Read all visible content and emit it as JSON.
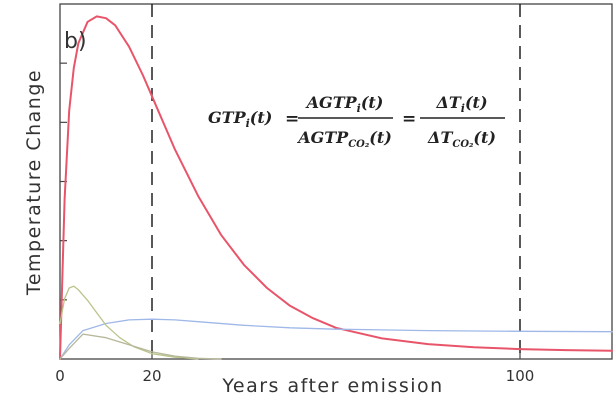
{
  "chart_data": {
    "type": "line",
    "panel_label": "b)",
    "xlabel": "Years after emission",
    "ylabel": "Temperature Change",
    "xlim": [
      0,
      120
    ],
    "ylim": [
      0,
      1
    ],
    "x_ticks": [
      "0",
      "20",
      "100"
    ],
    "x_tick_values": [
      0,
      20,
      100
    ],
    "vlines": [
      20,
      100
    ],
    "equation": {
      "lhs": "GTP",
      "lhs_sub": "i",
      "arg": "(t)",
      "eq": "=",
      "frac1_num": "AGTP",
      "frac1_num_sub": "i",
      "frac1_den": "AGTP",
      "frac1_den_sub": "CO₂",
      "frac2_num": "ΔT",
      "frac2_num_sub": "i",
      "frac2_den": "ΔT",
      "frac2_den_sub": "CO₂"
    },
    "series": [
      {
        "color": "#e8556a",
        "x": [
          0,
          1,
          2,
          3,
          4,
          6,
          8,
          10,
          12,
          15,
          18,
          20,
          25,
          30,
          35,
          40,
          45,
          50,
          55,
          60,
          70,
          80,
          90,
          100,
          110,
          120
        ],
        "y": [
          0,
          0.45,
          0.7,
          0.82,
          0.89,
          0.95,
          0.965,
          0.96,
          0.94,
          0.88,
          0.8,
          0.74,
          0.59,
          0.46,
          0.35,
          0.265,
          0.2,
          0.15,
          0.115,
          0.088,
          0.058,
          0.042,
          0.033,
          0.028,
          0.025,
          0.023
        ]
      },
      {
        "color": "#9fb8e8",
        "x": [
          0,
          2,
          5,
          10,
          15,
          20,
          25,
          30,
          40,
          50,
          60,
          80,
          100,
          120
        ],
        "y": [
          0,
          0.04,
          0.08,
          0.1,
          0.11,
          0.112,
          0.11,
          0.105,
          0.095,
          0.088,
          0.084,
          0.08,
          0.078,
          0.077
        ]
      },
      {
        "color": "#b9c48a",
        "x": [
          0,
          1,
          2,
          3,
          4,
          6,
          8,
          10,
          13,
          16,
          20,
          25,
          30
        ],
        "y": [
          0.1,
          0.17,
          0.2,
          0.205,
          0.195,
          0.165,
          0.13,
          0.095,
          0.06,
          0.035,
          0.015,
          0.005,
          0
        ]
      },
      {
        "color": "#b7b79a",
        "x": [
          0,
          2,
          5,
          10,
          15,
          20,
          25,
          30,
          35
        ],
        "y": [
          0,
          0.03,
          0.07,
          0.06,
          0.04,
          0.02,
          0.008,
          0.002,
          0
        ]
      }
    ]
  }
}
